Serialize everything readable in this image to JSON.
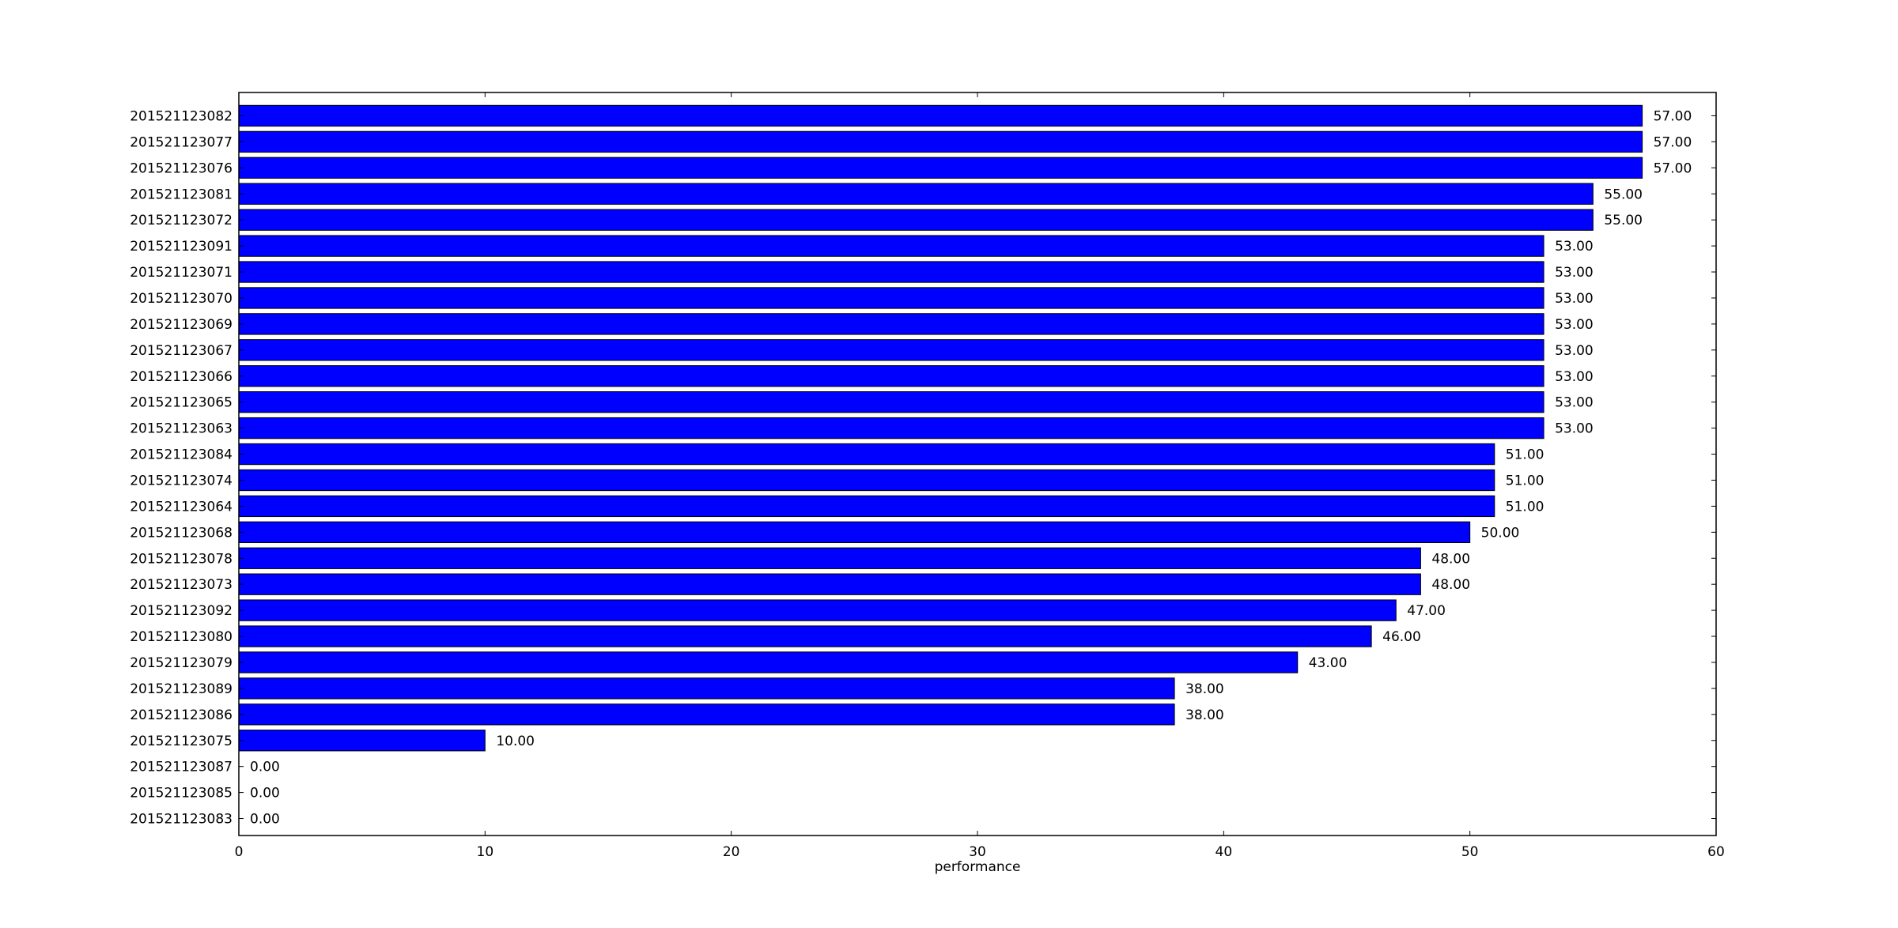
{
  "chart_data": {
    "type": "bar",
    "orientation": "horizontal",
    "title": "",
    "xlabel": "performance",
    "ylabel": "",
    "xlim": [
      0,
      60
    ],
    "x_ticks": [
      0,
      10,
      20,
      30,
      40,
      50,
      60
    ],
    "grid": false,
    "bar_color": "#0000ff",
    "value_label_format": "2 decimals",
    "categories": [
      "201521123082",
      "201521123077",
      "201521123076",
      "201521123081",
      "201521123072",
      "201521123091",
      "201521123071",
      "201521123070",
      "201521123069",
      "201521123067",
      "201521123066",
      "201521123065",
      "201521123063",
      "201521123084",
      "201521123074",
      "201521123064",
      "201521123068",
      "201521123078",
      "201521123073",
      "201521123092",
      "201521123080",
      "201521123079",
      "201521123089",
      "201521123086",
      "201521123075",
      "201521123087",
      "201521123085",
      "201521123083"
    ],
    "values": [
      57,
      57,
      57,
      55,
      55,
      53,
      53,
      53,
      53,
      53,
      53,
      53,
      53,
      51,
      51,
      51,
      50,
      48,
      48,
      47,
      46,
      43,
      38,
      38,
      10,
      0,
      0,
      0
    ],
    "value_labels": [
      "57.00",
      "57.00",
      "57.00",
      "55.00",
      "55.00",
      "53.00",
      "53.00",
      "53.00",
      "53.00",
      "53.00",
      "53.00",
      "53.00",
      "53.00",
      "51.00",
      "51.00",
      "51.00",
      "50.00",
      "48.00",
      "48.00",
      "47.00",
      "46.00",
      "43.00",
      "38.00",
      "38.00",
      "10.00",
      "0.00",
      "0.00",
      "0.00"
    ]
  }
}
